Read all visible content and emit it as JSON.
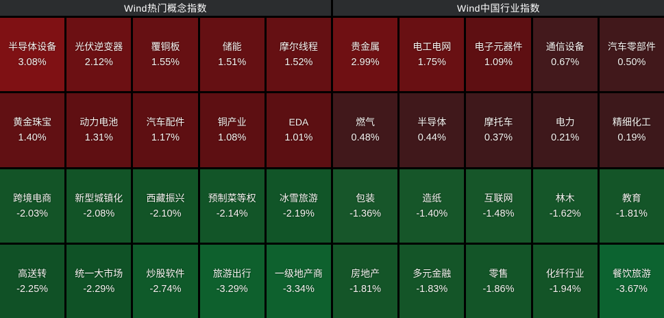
{
  "colors": {
    "background": "#000000",
    "header_bg": "#2b2d2f",
    "header_text": "#ffffff",
    "tile_text": "#f5f3f0",
    "gain_strong": "#7f1114",
    "gain_mid": "#651013",
    "gain_weak": "#40181b",
    "loss_mid": "#14562a",
    "loss_strong": "#0c6330"
  },
  "chart_data": [
    {
      "type": "heatmap",
      "title": "Wind热门概念指数",
      "unit": "%",
      "legend": "off",
      "tiles": [
        {
          "name": "半导体设备",
          "change": "3.08%",
          "value": 3.08,
          "bg": "#7f1114"
        },
        {
          "name": "光伏逆变器",
          "change": "2.12%",
          "value": 2.12,
          "bg": "#6c1013"
        },
        {
          "name": "覆铜板",
          "change": "1.55%",
          "value": 1.55,
          "bg": "#661013"
        },
        {
          "name": "储能",
          "change": "1.51%",
          "value": 1.51,
          "bg": "#651013"
        },
        {
          "name": "摩尔线程",
          "change": "1.52%",
          "value": 1.52,
          "bg": "#651013"
        },
        {
          "name": "黄金珠宝",
          "change": "1.40%",
          "value": 1.4,
          "bg": "#611013"
        },
        {
          "name": "动力电池",
          "change": "1.31%",
          "value": 1.31,
          "bg": "#5f0f12"
        },
        {
          "name": "汽车配件",
          "change": "1.17%",
          "value": 1.17,
          "bg": "#5e0f12"
        },
        {
          "name": "铜产业",
          "change": "1.08%",
          "value": 1.08,
          "bg": "#5d0f12"
        },
        {
          "name": "EDA",
          "change": "1.01%",
          "value": 1.01,
          "bg": "#5c0f12"
        },
        {
          "name": "跨境电商",
          "change": "-2.03%",
          "value": -2.03,
          "bg": "#135427"
        },
        {
          "name": "新型城镇化",
          "change": "-2.08%",
          "value": -2.08,
          "bg": "#125427"
        },
        {
          "name": "西藏振兴",
          "change": "-2.10%",
          "value": -2.1,
          "bg": "#125427"
        },
        {
          "name": "预制菜等权",
          "change": "-2.14%",
          "value": -2.14,
          "bg": "#125528"
        },
        {
          "name": "冰雪旅游",
          "change": "-2.19%",
          "value": -2.19,
          "bg": "#115528"
        },
        {
          "name": "高送转",
          "change": "-2.25%",
          "value": -2.25,
          "bg": "#105126"
        },
        {
          "name": "统一大市场",
          "change": "-2.29%",
          "value": -2.29,
          "bg": "#0f5226"
        },
        {
          "name": "炒股软件",
          "change": "-2.74%",
          "value": -2.74,
          "bg": "#0f5a2a"
        },
        {
          "name": "旅游出行",
          "change": "-3.29%",
          "value": -3.29,
          "bg": "#0e602d"
        },
        {
          "name": "一级地产商",
          "change": "-3.34%",
          "value": -3.34,
          "bg": "#0e612e"
        }
      ]
    },
    {
      "type": "heatmap",
      "title": "Wind中国行业指数",
      "unit": "%",
      "legend": "off",
      "tiles": [
        {
          "name": "贵金属",
          "change": "2.99%",
          "value": 2.99,
          "bg": "#6f1013"
        },
        {
          "name": "电工电网",
          "change": "1.75%",
          "value": 1.75,
          "bg": "#691013"
        },
        {
          "name": "电子元器件",
          "change": "1.09%",
          "value": 1.09,
          "bg": "#5e0f12"
        },
        {
          "name": "通信设备",
          "change": "0.67%",
          "value": 0.67,
          "bg": "#43191c"
        },
        {
          "name": "汽车零部件",
          "change": "0.50%",
          "value": 0.5,
          "bg": "#41181b"
        },
        {
          "name": "燃气",
          "change": "0.48%",
          "value": 0.48,
          "bg": "#41181b"
        },
        {
          "name": "半导体",
          "change": "0.44%",
          "value": 0.44,
          "bg": "#40181b"
        },
        {
          "name": "摩托车",
          "change": "0.37%",
          "value": 0.37,
          "bg": "#3f181b"
        },
        {
          "name": "电力",
          "change": "0.21%",
          "value": 0.21,
          "bg": "#3e181b"
        },
        {
          "name": "精细化工",
          "change": "0.19%",
          "value": 0.19,
          "bg": "#3d181b"
        },
        {
          "name": "包装",
          "change": "-1.36%",
          "value": -1.36,
          "bg": "#17562a"
        },
        {
          "name": "造纸",
          "change": "-1.40%",
          "value": -1.4,
          "bg": "#165629"
        },
        {
          "name": "互联网",
          "change": "-1.48%",
          "value": -1.48,
          "bg": "#165629"
        },
        {
          "name": "林木",
          "change": "-1.62%",
          "value": -1.62,
          "bg": "#155629"
        },
        {
          "name": "教育",
          "change": "-1.81%",
          "value": -1.81,
          "bg": "#145528"
        },
        {
          "name": "房地产",
          "change": "-1.81%",
          "value": -1.81,
          "bg": "#145528"
        },
        {
          "name": "多元金融",
          "change": "-1.83%",
          "value": -1.83,
          "bg": "#145528"
        },
        {
          "name": "零售",
          "change": "-1.86%",
          "value": -1.86,
          "bg": "#135528"
        },
        {
          "name": "化纤行业",
          "change": "-1.94%",
          "value": -1.94,
          "bg": "#135427"
        },
        {
          "name": "餐饮旅游",
          "change": "-3.67%",
          "value": -3.67,
          "bg": "#0c6330"
        }
      ]
    }
  ]
}
